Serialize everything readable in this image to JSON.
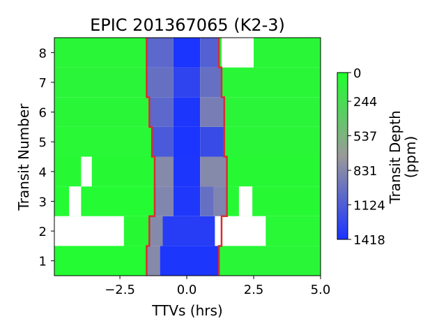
{
  "chart_data": {
    "type": "heatmap",
    "title": "EPIC 201367065 (K2-3)",
    "xlabel": "TTVs (hrs)",
    "ylabel": "Transit Number",
    "xlim": [
      -4.95,
      5.0
    ],
    "ylim": [
      0.5,
      8.5
    ],
    "xticks": [
      -2.5,
      0.0,
      2.5,
      5.0
    ],
    "xtick_labels": [
      "−2.5",
      "0.0",
      "2.5",
      "5.0"
    ],
    "yticks": [
      1,
      2,
      3,
      4,
      5,
      6,
      7,
      8
    ],
    "ytick_labels": [
      "1",
      "2",
      "3",
      "4",
      "5",
      "6",
      "7",
      "8"
    ],
    "colorbar": {
      "label": "Transit Depth\n(ppm)",
      "min": 0,
      "max": 1418,
      "ticks": [
        0,
        244,
        537,
        831,
        1124,
        1418
      ],
      "tick_labels": [
        "0",
        "244",
        "537",
        "831",
        "1124",
        "1418"
      ],
      "color_low": "#1fff2e",
      "color_mid": "#9a9a9a",
      "color_high": "#1a33ff"
    },
    "transit_window_color": "#d62f2f",
    "transit_window": [
      {
        "transit": 1,
        "start": -1.5,
        "end": 1.2
      },
      {
        "transit": 2,
        "start": -1.4,
        "end": 1.3
      },
      {
        "transit": 3,
        "start": -1.2,
        "end": 1.5
      },
      {
        "transit": 4,
        "start": -1.2,
        "end": 1.5
      },
      {
        "transit": 5,
        "start": -1.3,
        "end": 1.4
      },
      {
        "transit": 6,
        "start": -1.4,
        "end": 1.4
      },
      {
        "transit": 7,
        "start": -1.5,
        "end": 1.3
      },
      {
        "transit": 8,
        "start": -1.5,
        "end": 1.2
      }
    ],
    "gaps": [
      {
        "transit": 2,
        "x0": -4.95,
        "x1": -2.35
      },
      {
        "transit": 2,
        "x0": 1.05,
        "x1": 2.95
      },
      {
        "transit": 3,
        "x0": -4.4,
        "x1": -3.95
      },
      {
        "transit": 3,
        "x0": 1.95,
        "x1": 2.45
      },
      {
        "transit": 4,
        "x0": -3.95,
        "x1": -3.55
      },
      {
        "transit": 8,
        "x0": 1.3,
        "x1": 2.5
      }
    ],
    "depth_profile": [
      {
        "transit": 1,
        "blocks": [
          [
            -4.95,
            -1.5,
            30
          ],
          [
            -1.5,
            -1.0,
            820
          ],
          [
            -1.0,
            1.2,
            1400
          ],
          [
            1.2,
            5.0,
            60
          ]
        ]
      },
      {
        "transit": 2,
        "blocks": [
          [
            -4.95,
            -1.4,
            40
          ],
          [
            -1.4,
            -0.9,
            820
          ],
          [
            -0.9,
            1.3,
            1350
          ],
          [
            1.3,
            5.0,
            50
          ]
        ]
      },
      {
        "transit": 3,
        "blocks": [
          [
            -4.95,
            -1.2,
            30
          ],
          [
            -1.2,
            -0.5,
            850
          ],
          [
            -0.5,
            0.5,
            1390
          ],
          [
            0.5,
            1.0,
            1000
          ],
          [
            1.0,
            1.5,
            860
          ],
          [
            1.5,
            5.0,
            40
          ]
        ]
      },
      {
        "transit": 4,
        "blocks": [
          [
            -4.95,
            -1.2,
            40
          ],
          [
            -1.2,
            -0.5,
            820
          ],
          [
            -0.5,
            0.5,
            1400
          ],
          [
            0.5,
            1.5,
            820
          ],
          [
            1.5,
            5.0,
            40
          ]
        ]
      },
      {
        "transit": 5,
        "blocks": [
          [
            -4.95,
            -1.3,
            50
          ],
          [
            -1.3,
            -0.5,
            1150
          ],
          [
            -0.5,
            0.5,
            1410
          ],
          [
            0.5,
            1.4,
            1250
          ],
          [
            1.4,
            5.0,
            60
          ]
        ]
      },
      {
        "transit": 6,
        "blocks": [
          [
            -4.95,
            -1.4,
            60
          ],
          [
            -1.4,
            -0.5,
            1050
          ],
          [
            -0.5,
            0.5,
            1400
          ],
          [
            0.5,
            1.4,
            900
          ],
          [
            1.4,
            5.0,
            70
          ]
        ]
      },
      {
        "transit": 7,
        "blocks": [
          [
            -4.95,
            -1.5,
            70
          ],
          [
            -1.5,
            -0.5,
            1000
          ],
          [
            -0.5,
            0.5,
            1300
          ],
          [
            0.5,
            1.3,
            1000
          ],
          [
            1.3,
            5.0,
            60
          ]
        ]
      },
      {
        "transit": 8,
        "blocks": [
          [
            -4.95,
            -1.5,
            60
          ],
          [
            -1.5,
            -0.5,
            1050
          ],
          [
            -0.5,
            0.5,
            1410
          ],
          [
            0.5,
            1.2,
            1100
          ],
          [
            1.2,
            5.0,
            60
          ]
        ]
      }
    ]
  }
}
